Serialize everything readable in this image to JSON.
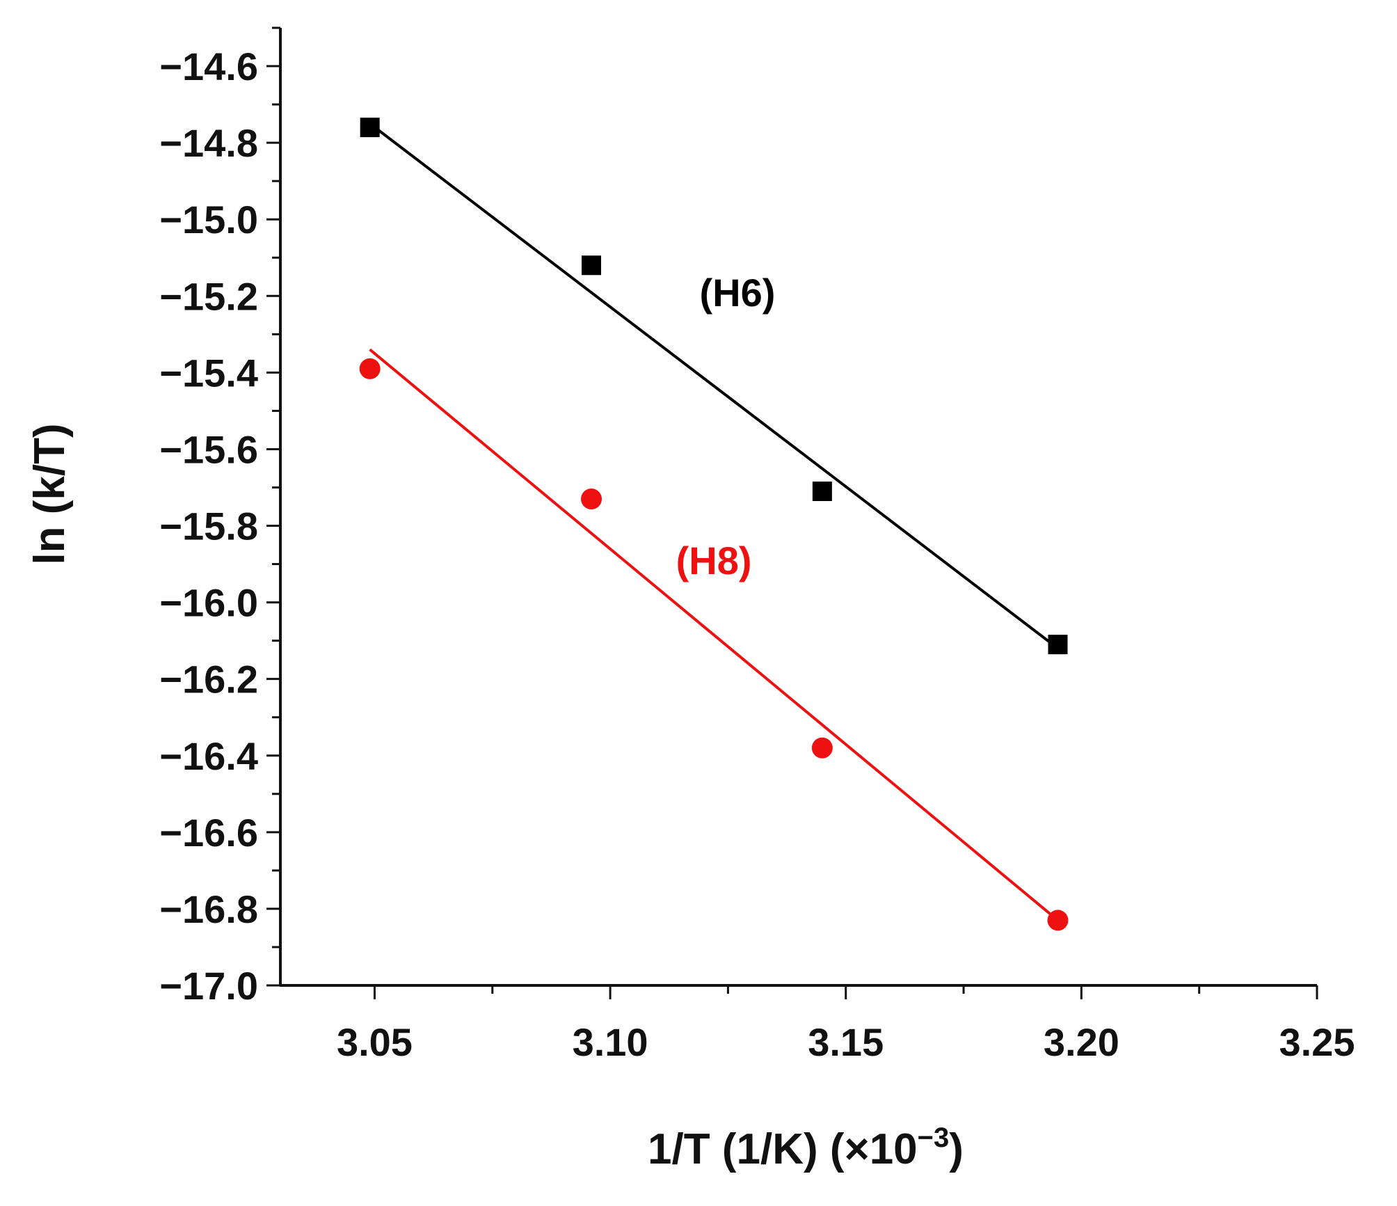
{
  "chart_data": {
    "type": "scatter",
    "xlabel": "1/T (1/K) (×10",
    "xlabel_exponent": "−3",
    "xlabel_close": ")",
    "ylabel": "ln (k/T)",
    "xlim": [
      3.03,
      3.25
    ],
    "ylim": [
      -17.0,
      -14.5
    ],
    "x_ticks": [
      3.05,
      3.1,
      3.15,
      3.2,
      3.25
    ],
    "x_tick_labels": [
      "3.05",
      "3.10",
      "3.15",
      "3.20",
      "3.25"
    ],
    "y_ticks": [
      -14.6,
      -14.8,
      -15.0,
      -15.2,
      -15.4,
      -15.6,
      -15.8,
      -16.0,
      -16.2,
      -16.4,
      -16.6,
      -16.8,
      -17.0
    ],
    "y_tick_labels": [
      "−14.6",
      "−14.8",
      "−15.0",
      "−15.2",
      "−15.4",
      "−15.6",
      "−15.8",
      "−16.0",
      "−16.2",
      "−16.4",
      "−16.6",
      "−16.8",
      "−17.0"
    ],
    "grid": false,
    "series": [
      {
        "name": "(H6)",
        "color": "#000000",
        "marker": "square",
        "x": [
          3.049,
          3.096,
          3.145,
          3.195
        ],
        "y": [
          -14.76,
          -15.12,
          -15.71,
          -16.11
        ],
        "fit": {
          "x": [
            3.049,
            3.195
          ],
          "y": [
            -14.75,
            -16.12
          ]
        },
        "label_position": {
          "x": 3.127,
          "y": -15.19
        }
      },
      {
        "name": "(H8)",
        "color": "#ee1111",
        "marker": "circle",
        "x": [
          3.049,
          3.096,
          3.145,
          3.195
        ],
        "y": [
          -15.39,
          -15.73,
          -16.38,
          -16.83
        ],
        "fit": {
          "x": [
            3.049,
            3.195
          ],
          "y": [
            -15.34,
            -16.83
          ]
        },
        "label_position": {
          "x": 3.122,
          "y": -15.89
        }
      }
    ]
  }
}
